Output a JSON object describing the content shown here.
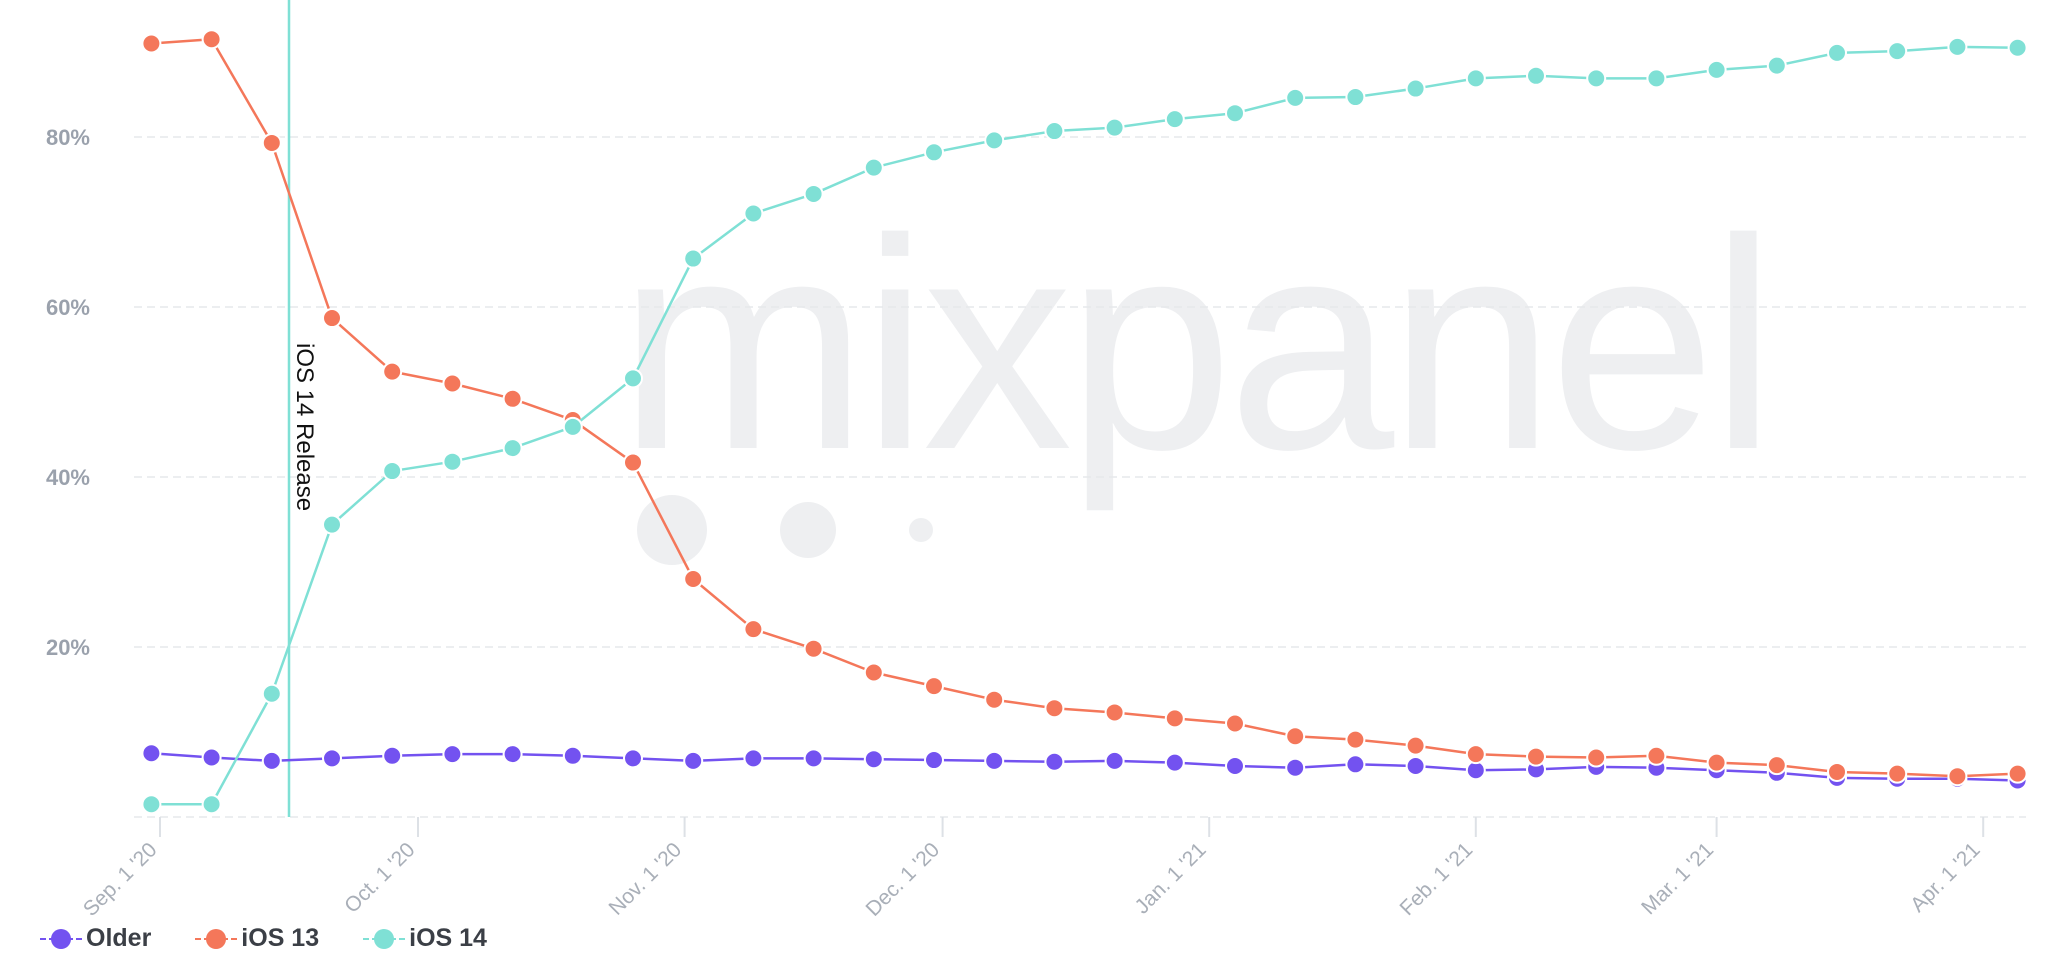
{
  "chart_data": {
    "type": "line",
    "title": "",
    "xlabel": "",
    "ylabel": "",
    "watermark": "mixpanel",
    "ylim": [
      0,
      95
    ],
    "yticks": [
      20,
      40,
      60,
      80
    ],
    "ytick_labels": [
      "20%",
      "40%",
      "60%",
      "80%"
    ],
    "xlim_days": [
      -1.5,
      218.5
    ],
    "xticks": [
      {
        "day": 0,
        "label": "Sep. 1 '20"
      },
      {
        "day": 30,
        "label": "Oct. 1 '20"
      },
      {
        "day": 61,
        "label": "Nov. 1 '20"
      },
      {
        "day": 91,
        "label": "Dec. 1 '20"
      },
      {
        "day": 122,
        "label": "Jan. 1 '21"
      },
      {
        "day": 153,
        "label": "Feb. 1 '21"
      },
      {
        "day": 181,
        "label": "Mar. 1 '21"
      },
      {
        "day": 212,
        "label": "Apr. 1 '21"
      }
    ],
    "x_days": [
      -1,
      6,
      13,
      20,
      27,
      34,
      41,
      48,
      55,
      62,
      69,
      76,
      83,
      90,
      97,
      104,
      111,
      118,
      125,
      132,
      139,
      146,
      153,
      160,
      167,
      174,
      181,
      188,
      195,
      202,
      209,
      216
    ],
    "annotation": {
      "day": 15,
      "label": "iOS 14 Release"
    },
    "series": [
      {
        "name": "Older",
        "color": "#7352f0",
        "values": [
          7.5,
          7.0,
          6.6,
          6.9,
          7.2,
          7.4,
          7.4,
          7.2,
          6.9,
          6.6,
          6.9,
          6.9,
          6.8,
          6.7,
          6.6,
          6.5,
          6.6,
          6.4,
          6.0,
          5.8,
          6.2,
          6.0,
          5.5,
          5.6,
          5.9,
          5.8,
          5.5,
          5.2,
          4.6,
          4.5,
          4.5,
          4.3
        ]
      },
      {
        "name": "iOS 13",
        "color": "#f4775a",
        "values": [
          91.0,
          91.5,
          79.3,
          58.7,
          52.4,
          51.0,
          49.2,
          46.7,
          41.7,
          28.0,
          22.1,
          19.8,
          17.0,
          15.4,
          13.8,
          12.8,
          12.3,
          11.6,
          11.0,
          9.5,
          9.1,
          8.4,
          7.4,
          7.1,
          7.0,
          7.2,
          6.4,
          6.1,
          5.3,
          5.1,
          4.8,
          5.1
        ]
      },
      {
        "name": "iOS 14",
        "color": "#7fe0d5",
        "values": [
          1.5,
          1.5,
          14.5,
          34.4,
          40.7,
          41.8,
          43.4,
          45.9,
          51.6,
          65.7,
          71.0,
          73.3,
          76.4,
          78.2,
          79.6,
          80.7,
          81.1,
          82.1,
          82.8,
          84.6,
          84.7,
          85.7,
          86.9,
          87.2,
          86.9,
          86.9,
          87.9,
          88.4,
          89.9,
          90.1,
          90.6,
          90.5
        ]
      }
    ],
    "legend": [
      {
        "name": "Older",
        "color": "#7352f0"
      },
      {
        "name": "iOS 13",
        "color": "#f4775a"
      },
      {
        "name": "iOS 14",
        "color": "#7fe0d5"
      }
    ]
  }
}
